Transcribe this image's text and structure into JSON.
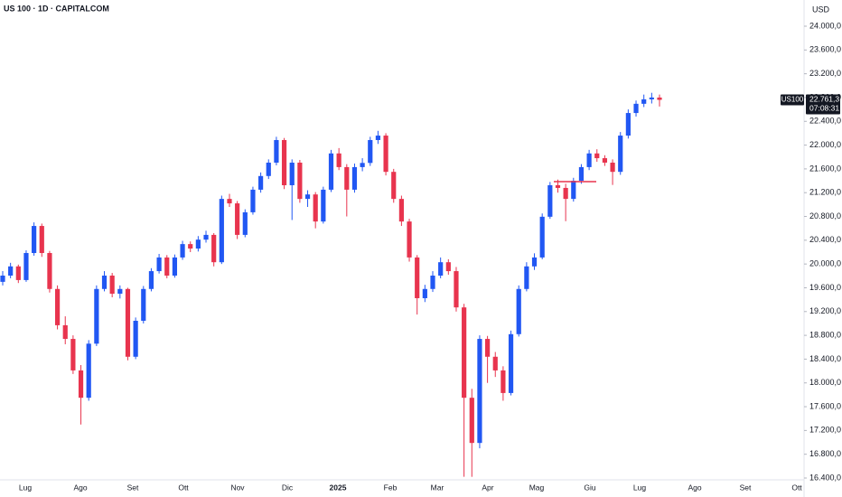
{
  "chart_data": {
    "type": "candlestick",
    "title": "US 100 · 1D · CAPITALCOM",
    "currency": "USD",
    "symbol_tag": "US100",
    "last_label": "22.761,3",
    "countdown": "07:08:31",
    "up_color": "#2157f3",
    "down_color": "#e8344e",
    "hline": 21385,
    "ylim": [
      16400,
      24000
    ],
    "yticks": [
      {
        "value": 16400,
        "label": "16.400,0"
      },
      {
        "value": 16800,
        "label": "16.800,0"
      },
      {
        "value": 17200,
        "label": "17.200,0"
      },
      {
        "value": 17600,
        "label": "17.600,0"
      },
      {
        "value": 18000,
        "label": "18.000,0"
      },
      {
        "value": 18400,
        "label": "18.400,0"
      },
      {
        "value": 18800,
        "label": "18.800,0"
      },
      {
        "value": 19200,
        "label": "19.200,0"
      },
      {
        "value": 19600,
        "label": "19.600,0"
      },
      {
        "value": 20000,
        "label": "20.000,0"
      },
      {
        "value": 20400,
        "label": "20.400,0"
      },
      {
        "value": 20800,
        "label": "20.800,0"
      },
      {
        "value": 21200,
        "label": "21.200,0"
      },
      {
        "value": 21600,
        "label": "21.600,0"
      },
      {
        "value": 22000,
        "label": "22.000,0"
      },
      {
        "value": 22400,
        "label": "22.400,0"
      },
      {
        "value": 22800,
        "label": "22.800,0"
      },
      {
        "value": 23200,
        "label": "23.200,0"
      },
      {
        "value": 23600,
        "label": "23.600,0"
      },
      {
        "value": 24000,
        "label": "24.000,0"
      }
    ],
    "xlabels": [
      "Lug",
      "Ago",
      "Set",
      "Ott",
      "Nov",
      "Dic",
      "2025",
      "Feb",
      "Mar",
      "Apr",
      "Mag",
      "Giu",
      "Lug",
      "Ago",
      "Set",
      "Ott"
    ],
    "candles": [
      [
        19700,
        19880,
        19640,
        19805
      ],
      [
        19805,
        20020,
        19760,
        19960
      ],
      [
        19960,
        19990,
        19680,
        19730
      ],
      [
        19730,
        20230,
        19700,
        20185
      ],
      [
        20185,
        20700,
        20140,
        20640
      ],
      [
        20640,
        20680,
        20120,
        20185
      ],
      [
        20185,
        20220,
        19520,
        19580
      ],
      [
        19580,
        19640,
        18900,
        18970
      ],
      [
        18970,
        19120,
        18650,
        18740
      ],
      [
        18740,
        18800,
        18150,
        18210
      ],
      [
        18210,
        18300,
        17300,
        17750
      ],
      [
        17750,
        18720,
        17700,
        18660
      ],
      [
        18660,
        19640,
        18620,
        19580
      ],
      [
        19580,
        19880,
        19540,
        19805
      ],
      [
        19805,
        19850,
        19440,
        19500
      ],
      [
        19500,
        19640,
        19420,
        19580
      ],
      [
        19580,
        19600,
        18380,
        18440
      ],
      [
        18440,
        19100,
        18400,
        19045
      ],
      [
        19045,
        19630,
        19000,
        19580
      ],
      [
        19580,
        19930,
        19540,
        19880
      ],
      [
        19880,
        20170,
        19840,
        20110
      ],
      [
        20110,
        20150,
        19760,
        19805
      ],
      [
        19805,
        20160,
        19770,
        20110
      ],
      [
        20110,
        20390,
        20070,
        20335
      ],
      [
        20335,
        20380,
        20200,
        20260
      ],
      [
        20260,
        20470,
        20210,
        20410
      ],
      [
        20410,
        20560,
        20360,
        20490
      ],
      [
        20490,
        20520,
        19960,
        20030
      ],
      [
        20030,
        21150,
        20000,
        21095
      ],
      [
        21095,
        21180,
        20960,
        21020
      ],
      [
        21020,
        21060,
        20420,
        20490
      ],
      [
        20490,
        20920,
        20450,
        20870
      ],
      [
        20870,
        21300,
        20830,
        21250
      ],
      [
        21250,
        21540,
        21200,
        21480
      ],
      [
        21480,
        21760,
        21430,
        21705
      ],
      [
        21705,
        22140,
        21660,
        22085
      ],
      [
        22085,
        22120,
        21260,
        21325
      ],
      [
        21325,
        21760,
        20740,
        21705
      ],
      [
        21705,
        21750,
        21030,
        21095
      ],
      [
        21095,
        21240,
        20960,
        21170
      ],
      [
        21170,
        21210,
        20600,
        20715
      ],
      [
        20715,
        21300,
        20680,
        21250
      ],
      [
        21250,
        21920,
        21210,
        21860
      ],
      [
        21860,
        21950,
        21580,
        21630
      ],
      [
        21630,
        21680,
        20800,
        21250
      ],
      [
        21250,
        21690,
        21200,
        21630
      ],
      [
        21630,
        21780,
        21560,
        21700
      ],
      [
        21700,
        22140,
        21650,
        22085
      ],
      [
        22085,
        22240,
        22020,
        22160
      ],
      [
        22160,
        22200,
        21490,
        21550
      ],
      [
        21550,
        21600,
        21030,
        21095
      ],
      [
        21095,
        21150,
        20640,
        20715
      ],
      [
        20715,
        20760,
        20040,
        20110
      ],
      [
        20110,
        20150,
        19150,
        19425
      ],
      [
        19425,
        19650,
        19360,
        19580
      ],
      [
        19580,
        19880,
        19530,
        19805
      ],
      [
        19805,
        20110,
        19760,
        20030
      ],
      [
        20030,
        20080,
        19820,
        19880
      ],
      [
        19880,
        19950,
        19200,
        19270
      ],
      [
        19270,
        19330,
        16420,
        17750
      ],
      [
        17750,
        17900,
        16420,
        16990
      ],
      [
        16990,
        18800,
        16900,
        18740
      ],
      [
        18740,
        18790,
        18000,
        18440
      ],
      [
        18440,
        18520,
        18100,
        18210
      ],
      [
        18210,
        18280,
        17700,
        17830
      ],
      [
        17830,
        18880,
        17790,
        18820
      ],
      [
        18820,
        19640,
        18780,
        19580
      ],
      [
        19580,
        20030,
        19540,
        19960
      ],
      [
        19960,
        20180,
        19900,
        20110
      ],
      [
        20110,
        20850,
        20080,
        20795
      ],
      [
        20795,
        21380,
        20760,
        21325
      ],
      [
        21325,
        21420,
        21200,
        21280
      ],
      [
        21280,
        21350,
        20720,
        21095
      ],
      [
        21095,
        21450,
        21050,
        21400
      ],
      [
        21400,
        21680,
        21350,
        21630
      ],
      [
        21630,
        21920,
        21580,
        21860
      ],
      [
        21860,
        21930,
        21720,
        21780
      ],
      [
        21780,
        21830,
        21650,
        21705
      ],
      [
        21705,
        21760,
        21330,
        21550
      ],
      [
        21550,
        22220,
        21500,
        22160
      ],
      [
        22160,
        22600,
        22110,
        22540
      ],
      [
        22540,
        22750,
        22480,
        22695
      ],
      [
        22695,
        22850,
        22640,
        22770
      ],
      [
        22770,
        22880,
        22700,
        22800
      ],
      [
        22800,
        22850,
        22650,
        22761.3
      ]
    ]
  }
}
